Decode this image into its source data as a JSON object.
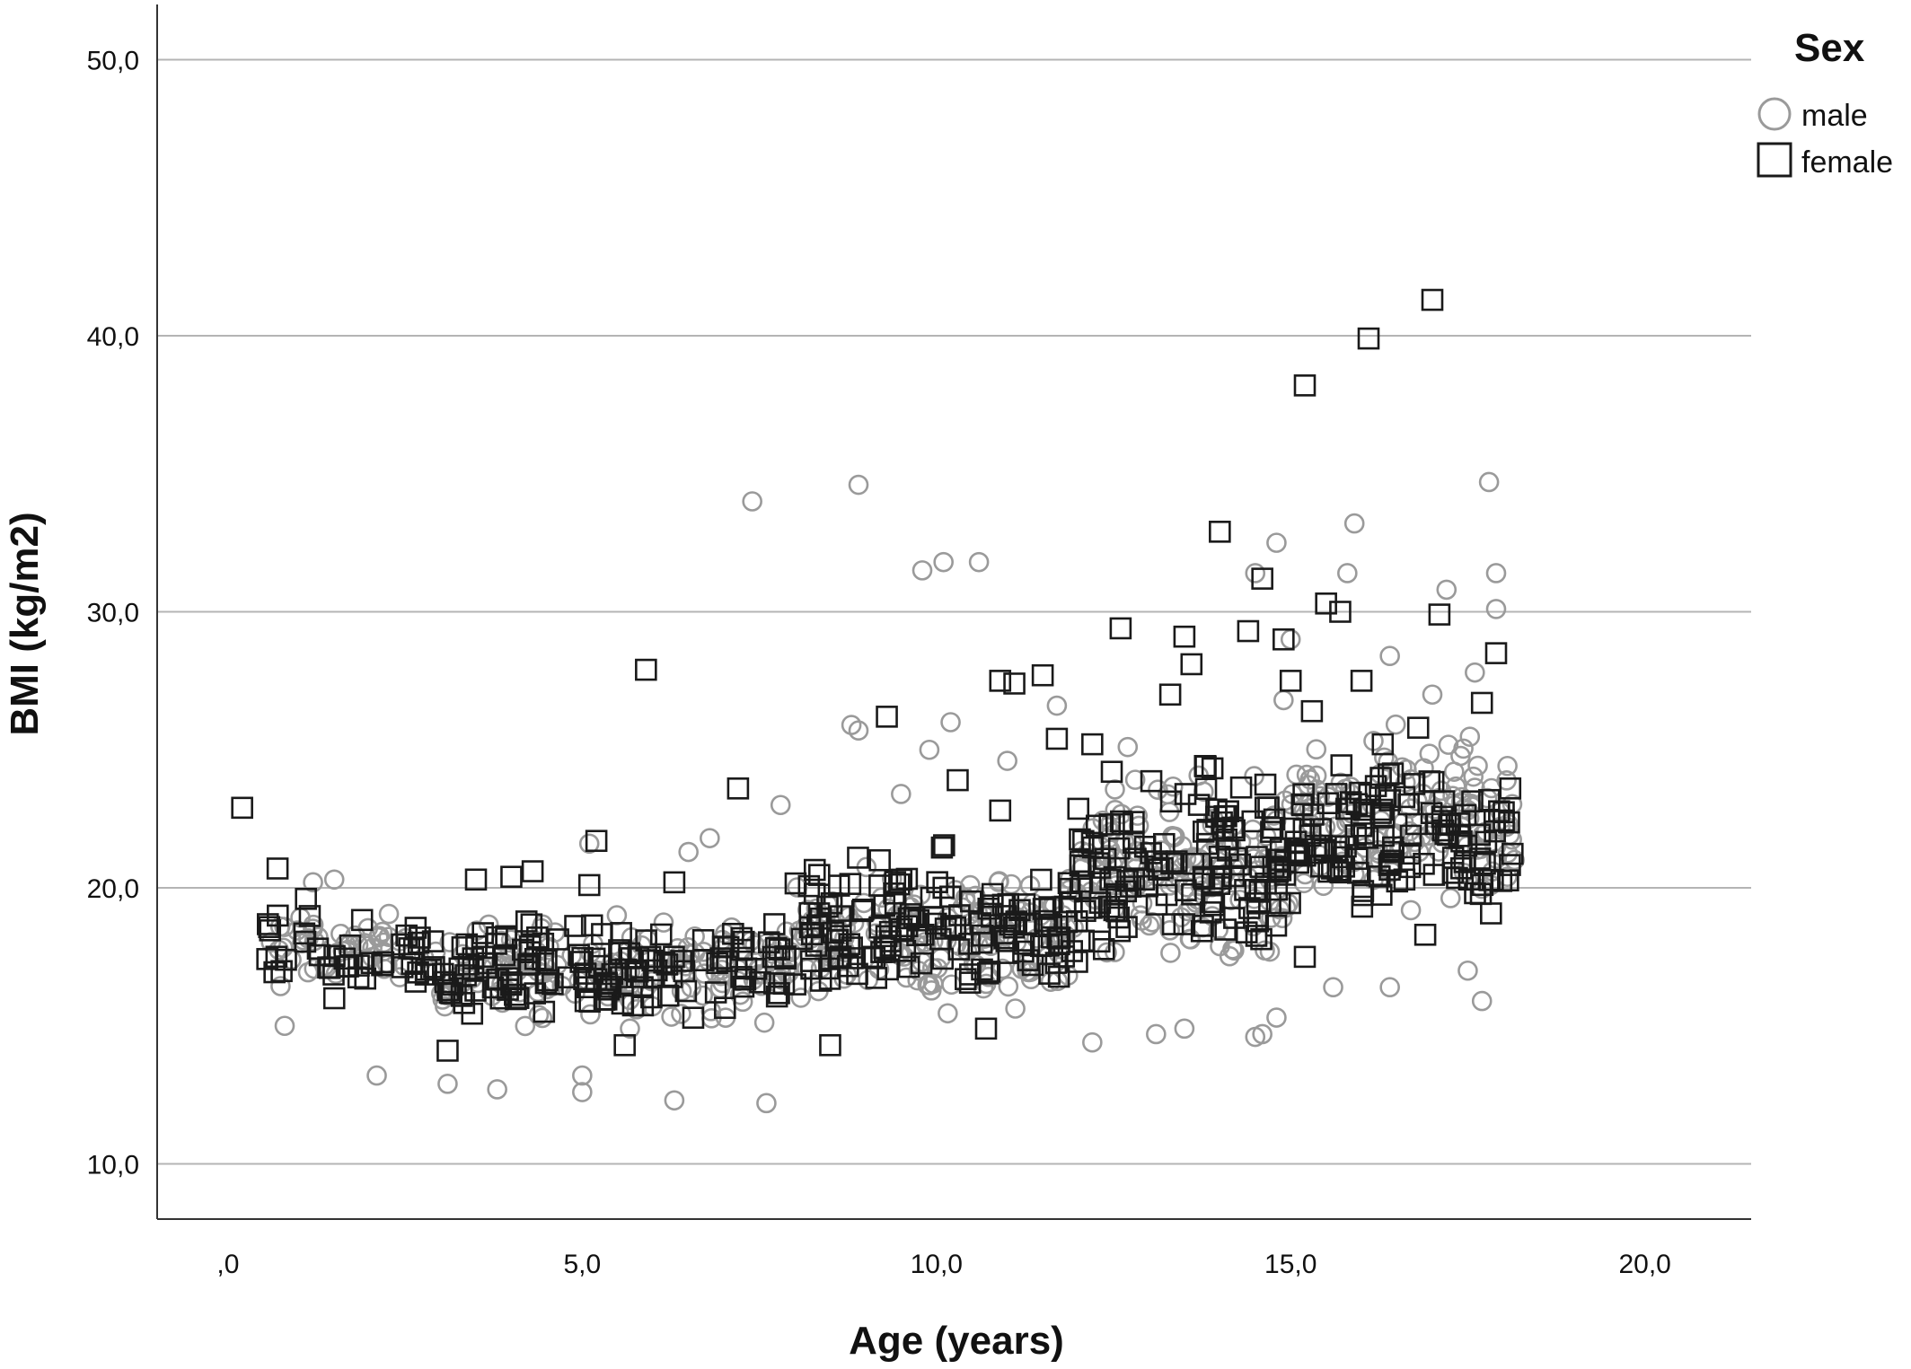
{
  "chart_data": {
    "type": "scatter",
    "xlabel": "Age (years)",
    "ylabel": "BMI (kg/m2)",
    "xlim": [
      -1,
      21.5
    ],
    "ylim": [
      8,
      52
    ],
    "xticks": [
      {
        "value": 0,
        "label": ",0"
      },
      {
        "value": 5,
        "label": "5,0"
      },
      {
        "value": 10,
        "label": "10,0"
      },
      {
        "value": 15,
        "label": "15,0"
      },
      {
        "value": 20,
        "label": "20,0"
      }
    ],
    "yticks": [
      {
        "value": 10,
        "label": "10,0"
      },
      {
        "value": 20,
        "label": "20,0"
      },
      {
        "value": 30,
        "label": "30,0"
      },
      {
        "value": 40,
        "label": "40,0"
      },
      {
        "value": 50,
        "label": "50,0"
      }
    ],
    "grid": "horizontal",
    "legend": {
      "title": "Sex",
      "position": "top-right",
      "items": [
        {
          "label": "male",
          "marker": "circle",
          "color": "#9a9a9a"
        },
        {
          "label": "female",
          "marker": "square",
          "color": "#1a1a1a"
        }
      ]
    },
    "colors": {
      "male": "#9a9a9a",
      "female": "#1a1a1a",
      "grid": "#b4b4b4",
      "axis": "#333333"
    },
    "series": [
      {
        "name": "male",
        "marker": "circle",
        "x": [
          7.4,
          8.9,
          9.8,
          10.1,
          10.6,
          8.8,
          8.9,
          15.9,
          15.8,
          17.9,
          14.8,
          14.5,
          15.0,
          16.4,
          17.2,
          17.0,
          17.9,
          14.9,
          17.8,
          17.6,
          7.6,
          3.1,
          2.1,
          5.0,
          3.8,
          6.3,
          5.0,
          0.8,
          17.5,
          17.7,
          14.5,
          14.6,
          14.8,
          12.2,
          16.4,
          15.6,
          13.1,
          13.5,
          7.8,
          9.5,
          9.9,
          10.2,
          11.0,
          11.7,
          12.7,
          6.8,
          6.5,
          5.1,
          1.5,
          1.2
        ],
        "y": [
          34.0,
          34.6,
          31.5,
          31.8,
          31.8,
          25.9,
          25.7,
          33.2,
          31.4,
          31.4,
          32.5,
          31.4,
          29.0,
          28.4,
          30.8,
          27.0,
          30.1,
          26.8,
          34.7,
          27.8,
          12.2,
          12.9,
          13.2,
          12.6,
          12.7,
          12.3,
          13.2,
          15.0,
          17.0,
          15.9,
          14.6,
          14.7,
          15.3,
          14.4,
          16.4,
          16.4,
          14.7,
          14.9,
          23.0,
          23.4,
          25.0,
          26.0,
          24.6,
          26.6,
          25.1,
          21.8,
          21.3,
          21.6,
          20.3,
          20.2
        ],
        "cloud": [
          {
            "age": [
              0.5,
              3.0
            ],
            "bmi": [
              16.0,
              19.5
            ],
            "n": 55
          },
          {
            "age": [
              3.0,
              8.0
            ],
            "bmi": [
              14.5,
              19.5
            ],
            "n": 160
          },
          {
            "age": [
              8.0,
              12.0
            ],
            "bmi": [
              15.0,
              21.5
            ],
            "n": 150
          },
          {
            "age": [
              12.0,
              15.0
            ],
            "bmi": [
              16.5,
              25.0
            ],
            "n": 140
          },
          {
            "age": [
              15.0,
              18.2
            ],
            "bmi": [
              18.0,
              26.5
            ],
            "n": 130
          }
        ]
      },
      {
        "name": "female",
        "marker": "square",
        "x": [
          0.2,
          0.7,
          5.9,
          7.2,
          9.3,
          10.3,
          10.9,
          11.1,
          11.5,
          11.7,
          12.6,
          13.3,
          13.5,
          13.6,
          14.0,
          14.4,
          14.6,
          14.9,
          15.0,
          15.2,
          15.3,
          15.5,
          15.7,
          16.0,
          16.1,
          16.3,
          16.8,
          17.0,
          17.1,
          17.7,
          18.1,
          17.9,
          5.2,
          5.1,
          3.5,
          4.0,
          4.3,
          1.1,
          6.3,
          9.2,
          10.9,
          12.2,
          13.8,
          1.5,
          3.1,
          5.6,
          8.5,
          10.7,
          15.2,
          16.9
        ],
        "y": [
          22.9,
          20.7,
          27.9,
          23.6,
          26.2,
          23.9,
          27.5,
          27.4,
          27.7,
          25.4,
          29.4,
          27.0,
          29.1,
          28.1,
          32.9,
          29.3,
          31.2,
          29.0,
          27.5,
          38.2,
          26.4,
          30.3,
          30.0,
          27.5,
          39.9,
          25.2,
          25.8,
          41.3,
          29.9,
          26.7,
          23.6,
          28.5,
          21.7,
          20.1,
          20.3,
          20.4,
          20.6,
          19.6,
          20.2,
          21.0,
          22.8,
          25.2,
          24.4,
          16.0,
          14.1,
          14.3,
          14.3,
          14.9,
          17.5,
          18.3
        ],
        "cloud": [
          {
            "age": [
              0.5,
              3.0
            ],
            "bmi": [
              15.5,
              19.5
            ],
            "n": 45
          },
          {
            "age": [
              3.0,
              8.0
            ],
            "bmi": [
              14.5,
              19.5
            ],
            "n": 140
          },
          {
            "age": [
              8.0,
              12.0
            ],
            "bmi": [
              15.0,
              22.0
            ],
            "n": 140
          },
          {
            "age": [
              12.0,
              15.0
            ],
            "bmi": [
              16.5,
              25.5
            ],
            "n": 130
          },
          {
            "age": [
              15.0,
              18.2
            ],
            "bmi": [
              18.0,
              25.5
            ],
            "n": 120
          }
        ]
      }
    ]
  }
}
